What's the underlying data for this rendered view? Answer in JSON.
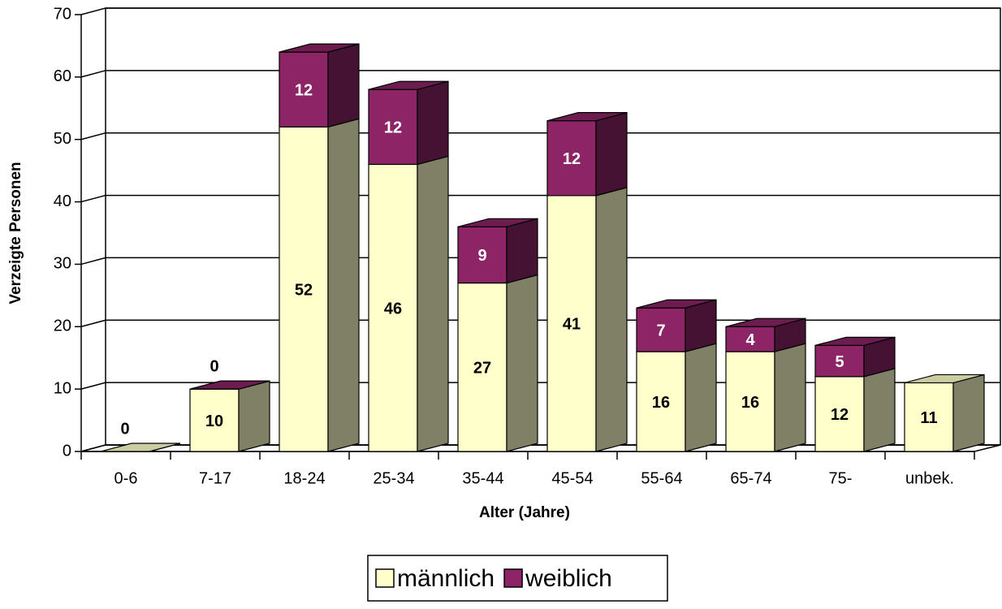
{
  "chart_data": {
    "type": "bar3d_stacked",
    "x_label": "Alter (Jahre)",
    "y_label": "Verzeigte Personen",
    "categories": [
      "0-6",
      "7-17",
      "18-24",
      "25-34",
      "35-44",
      "45-54",
      "55-64",
      "65-74",
      "75-",
      "unbek."
    ],
    "series": [
      {
        "name": "männlich",
        "color": "#ffffcc",
        "values": [
          0,
          10,
          52,
          46,
          27,
          41,
          16,
          16,
          12,
          11
        ]
      },
      {
        "name": "weiblich",
        "color": "#8c2466",
        "values": [
          null,
          0,
          12,
          12,
          9,
          12,
          7,
          4,
          5,
          null
        ]
      }
    ],
    "ylim": [
      0,
      70
    ],
    "yticks": [
      0,
      10,
      20,
      30,
      40,
      50,
      60,
      70
    ],
    "grid": true,
    "legend": "bottom"
  }
}
